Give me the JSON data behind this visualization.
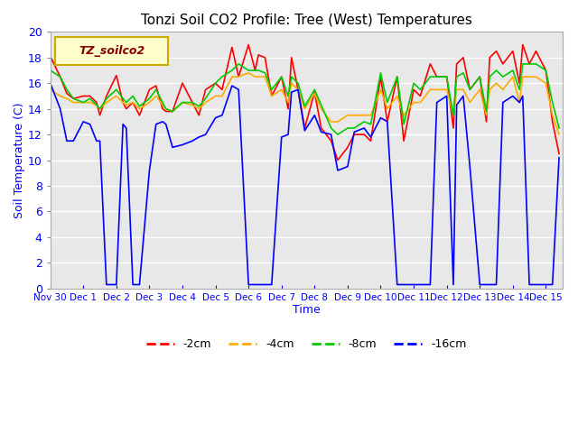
{
  "title": "Tonzi Soil CO2 Profile: Tree (West) Temperatures",
  "xlabel": "Time",
  "ylabel": "Soil Temperature (C)",
  "ylim": [
    0,
    20
  ],
  "xlim_start": 0,
  "xlim_end": 15.5,
  "x_tick_positions": [
    0,
    1,
    2,
    3,
    4,
    5,
    6,
    7,
    8,
    9,
    10,
    11,
    12,
    13,
    14,
    15
  ],
  "x_tick_labels": [
    "Nov 30",
    "Dec 1",
    "Dec 2",
    "Dec 3",
    "Dec 4",
    "Dec 5",
    "Dec 6",
    "Dec 7",
    "Dec 8",
    "Dec 9",
    "Dec 10",
    "Dec 11",
    "Dec 12",
    "Dec 13",
    "Dec 14",
    "Dec 15"
  ],
  "legend_label": "TZ_soilco2",
  "bg_color": "#e8e8e8",
  "line_colors": {
    "-2cm": "#ff0000",
    "-4cm": "#ffaa00",
    "-8cm": "#00cc00",
    "-16cm": "#0000ff"
  },
  "series_x": {
    "-2cm": [
      0.0,
      0.3,
      0.5,
      0.7,
      1.0,
      1.2,
      1.4,
      1.5,
      1.7,
      2.0,
      2.2,
      2.3,
      2.5,
      2.7,
      3.0,
      3.2,
      3.4,
      3.5,
      3.7,
      4.0,
      4.3,
      4.5,
      4.7,
      5.0,
      5.2,
      5.5,
      5.7,
      6.0,
      6.2,
      6.3,
      6.5,
      6.7,
      7.0,
      7.2,
      7.3,
      7.5,
      7.7,
      8.0,
      8.2,
      8.5,
      8.7,
      9.0,
      9.2,
      9.5,
      9.7,
      10.0,
      10.2,
      10.5,
      10.7,
      11.0,
      11.2,
      11.5,
      11.7,
      12.0,
      12.2,
      12.3,
      12.5,
      12.7,
      13.0,
      13.2,
      13.3,
      13.5,
      13.7,
      14.0,
      14.2,
      14.3,
      14.5,
      14.7,
      15.0,
      15.2,
      15.4
    ],
    "-4cm": [
      0.0,
      0.3,
      0.5,
      0.7,
      1.0,
      1.2,
      1.4,
      1.5,
      1.7,
      2.0,
      2.2,
      2.3,
      2.5,
      2.7,
      3.0,
      3.2,
      3.4,
      3.5,
      3.7,
      4.0,
      4.3,
      4.5,
      4.7,
      5.0,
      5.2,
      5.5,
      5.7,
      6.0,
      6.2,
      6.3,
      6.5,
      6.7,
      7.0,
      7.2,
      7.3,
      7.5,
      7.7,
      8.0,
      8.2,
      8.5,
      8.7,
      9.0,
      9.2,
      9.5,
      9.7,
      10.0,
      10.2,
      10.5,
      10.7,
      11.0,
      11.2,
      11.5,
      11.7,
      12.0,
      12.2,
      12.3,
      12.5,
      12.7,
      13.0,
      13.2,
      13.3,
      13.5,
      13.7,
      14.0,
      14.2,
      14.3,
      14.5,
      14.7,
      15.0,
      15.2,
      15.4
    ],
    "-8cm": [
      0.0,
      0.3,
      0.5,
      0.7,
      1.0,
      1.2,
      1.4,
      1.5,
      1.7,
      2.0,
      2.2,
      2.3,
      2.5,
      2.7,
      3.0,
      3.2,
      3.4,
      3.5,
      3.7,
      4.0,
      4.3,
      4.5,
      4.7,
      5.0,
      5.2,
      5.5,
      5.7,
      6.0,
      6.2,
      6.3,
      6.5,
      6.7,
      7.0,
      7.2,
      7.3,
      7.5,
      7.7,
      8.0,
      8.2,
      8.5,
      8.7,
      9.0,
      9.2,
      9.5,
      9.7,
      10.0,
      10.2,
      10.5,
      10.7,
      11.0,
      11.2,
      11.5,
      11.7,
      12.0,
      12.2,
      12.3,
      12.5,
      12.7,
      13.0,
      13.2,
      13.3,
      13.5,
      13.7,
      14.0,
      14.2,
      14.3,
      14.5,
      14.7,
      15.0,
      15.2,
      15.4
    ],
    "-16cm": [
      0.0,
      0.3,
      0.5,
      0.7,
      1.0,
      1.2,
      1.4,
      1.5,
      1.7,
      2.0,
      2.2,
      2.3,
      2.5,
      2.7,
      3.0,
      3.2,
      3.4,
      3.5,
      3.7,
      4.0,
      4.3,
      4.5,
      4.7,
      5.0,
      5.2,
      5.5,
      5.7,
      6.0,
      6.2,
      6.3,
      6.5,
      6.7,
      7.0,
      7.2,
      7.3,
      7.5,
      7.7,
      8.0,
      8.2,
      8.5,
      8.7,
      9.0,
      9.2,
      9.5,
      9.7,
      10.0,
      10.2,
      10.5,
      10.7,
      11.0,
      11.2,
      11.5,
      11.7,
      12.0,
      12.2,
      12.3,
      12.5,
      12.7,
      13.0,
      13.2,
      13.3,
      13.5,
      13.7,
      14.0,
      14.2,
      14.3,
      14.5,
      14.7,
      15.0,
      15.2,
      15.4
    ]
  },
  "series_y": {
    "-2cm": [
      18.1,
      16.5,
      15.2,
      14.8,
      15.0,
      15.0,
      14.5,
      13.5,
      15.0,
      16.6,
      14.5,
      14.0,
      14.5,
      13.5,
      15.5,
      15.8,
      14.0,
      13.8,
      13.8,
      16.0,
      14.5,
      13.5,
      15.5,
      16.0,
      15.5,
      18.8,
      16.5,
      19.0,
      17.0,
      18.2,
      18.0,
      15.0,
      16.5,
      14.0,
      18.0,
      15.5,
      12.5,
      15.3,
      12.5,
      11.5,
      10.0,
      11.0,
      12.0,
      12.0,
      11.5,
      16.5,
      13.0,
      16.5,
      11.5,
      15.5,
      15.0,
      17.5,
      16.5,
      16.5,
      12.5,
      17.5,
      18.0,
      15.5,
      16.5,
      13.0,
      18.0,
      18.5,
      17.5,
      18.5,
      16.0,
      19.0,
      17.5,
      18.5,
      17.0,
      13.0,
      10.5
    ],
    "-4cm": [
      15.5,
      15.0,
      14.8,
      14.5,
      14.5,
      14.5,
      14.3,
      14.0,
      14.5,
      15.0,
      14.5,
      14.3,
      14.5,
      14.0,
      14.5,
      15.0,
      14.3,
      14.0,
      13.8,
      14.5,
      14.3,
      14.0,
      14.5,
      15.0,
      15.0,
      16.5,
      16.5,
      16.8,
      16.5,
      16.5,
      16.5,
      15.0,
      15.5,
      14.5,
      16.0,
      15.5,
      14.0,
      15.2,
      14.0,
      13.0,
      13.0,
      13.5,
      13.5,
      13.5,
      13.5,
      15.5,
      14.0,
      15.0,
      13.5,
      14.5,
      14.5,
      15.5,
      15.5,
      15.5,
      13.5,
      15.5,
      15.5,
      14.5,
      15.5,
      13.5,
      15.5,
      16.0,
      15.5,
      16.5,
      14.5,
      16.5,
      16.5,
      16.5,
      16.0,
      13.5,
      12.0
    ],
    "-8cm": [
      17.0,
      16.5,
      15.5,
      14.8,
      14.5,
      14.8,
      14.3,
      14.0,
      14.8,
      15.5,
      14.8,
      14.5,
      15.0,
      14.2,
      14.8,
      15.5,
      14.5,
      14.0,
      13.8,
      14.5,
      14.5,
      14.2,
      14.8,
      16.0,
      16.5,
      17.0,
      17.5,
      17.0,
      17.0,
      17.0,
      16.8,
      15.5,
      16.5,
      15.0,
      16.5,
      16.0,
      14.2,
      15.5,
      14.3,
      12.5,
      12.0,
      12.5,
      12.5,
      13.0,
      12.8,
      16.8,
      14.5,
      16.5,
      12.8,
      16.0,
      15.5,
      16.5,
      16.5,
      16.5,
      13.5,
      16.5,
      16.8,
      15.5,
      16.5,
      13.8,
      16.5,
      17.0,
      16.5,
      17.0,
      15.5,
      17.5,
      17.5,
      17.5,
      17.0,
      14.5,
      12.5
    ],
    "-16cm": [
      16.0,
      14.0,
      11.5,
      11.5,
      13.0,
      12.8,
      11.5,
      11.5,
      0.3,
      0.3,
      12.8,
      12.5,
      0.3,
      0.3,
      9.2,
      12.8,
      13.0,
      12.8,
      11.0,
      11.2,
      11.5,
      11.8,
      12.0,
      13.3,
      13.5,
      15.8,
      15.5,
      0.3,
      0.3,
      0.3,
      0.3,
      0.3,
      11.8,
      12.0,
      15.3,
      15.5,
      12.3,
      13.5,
      12.2,
      12.0,
      9.2,
      9.5,
      12.2,
      12.5,
      11.8,
      13.3,
      13.0,
      0.3,
      0.3,
      0.3,
      0.3,
      0.3,
      14.5,
      15.0,
      0.3,
      14.3,
      15.0,
      9.5,
      0.3,
      0.3,
      0.3,
      0.3,
      14.5,
      15.0,
      14.5,
      15.0,
      0.3,
      0.3,
      0.3,
      0.3,
      10.2
    ]
  }
}
